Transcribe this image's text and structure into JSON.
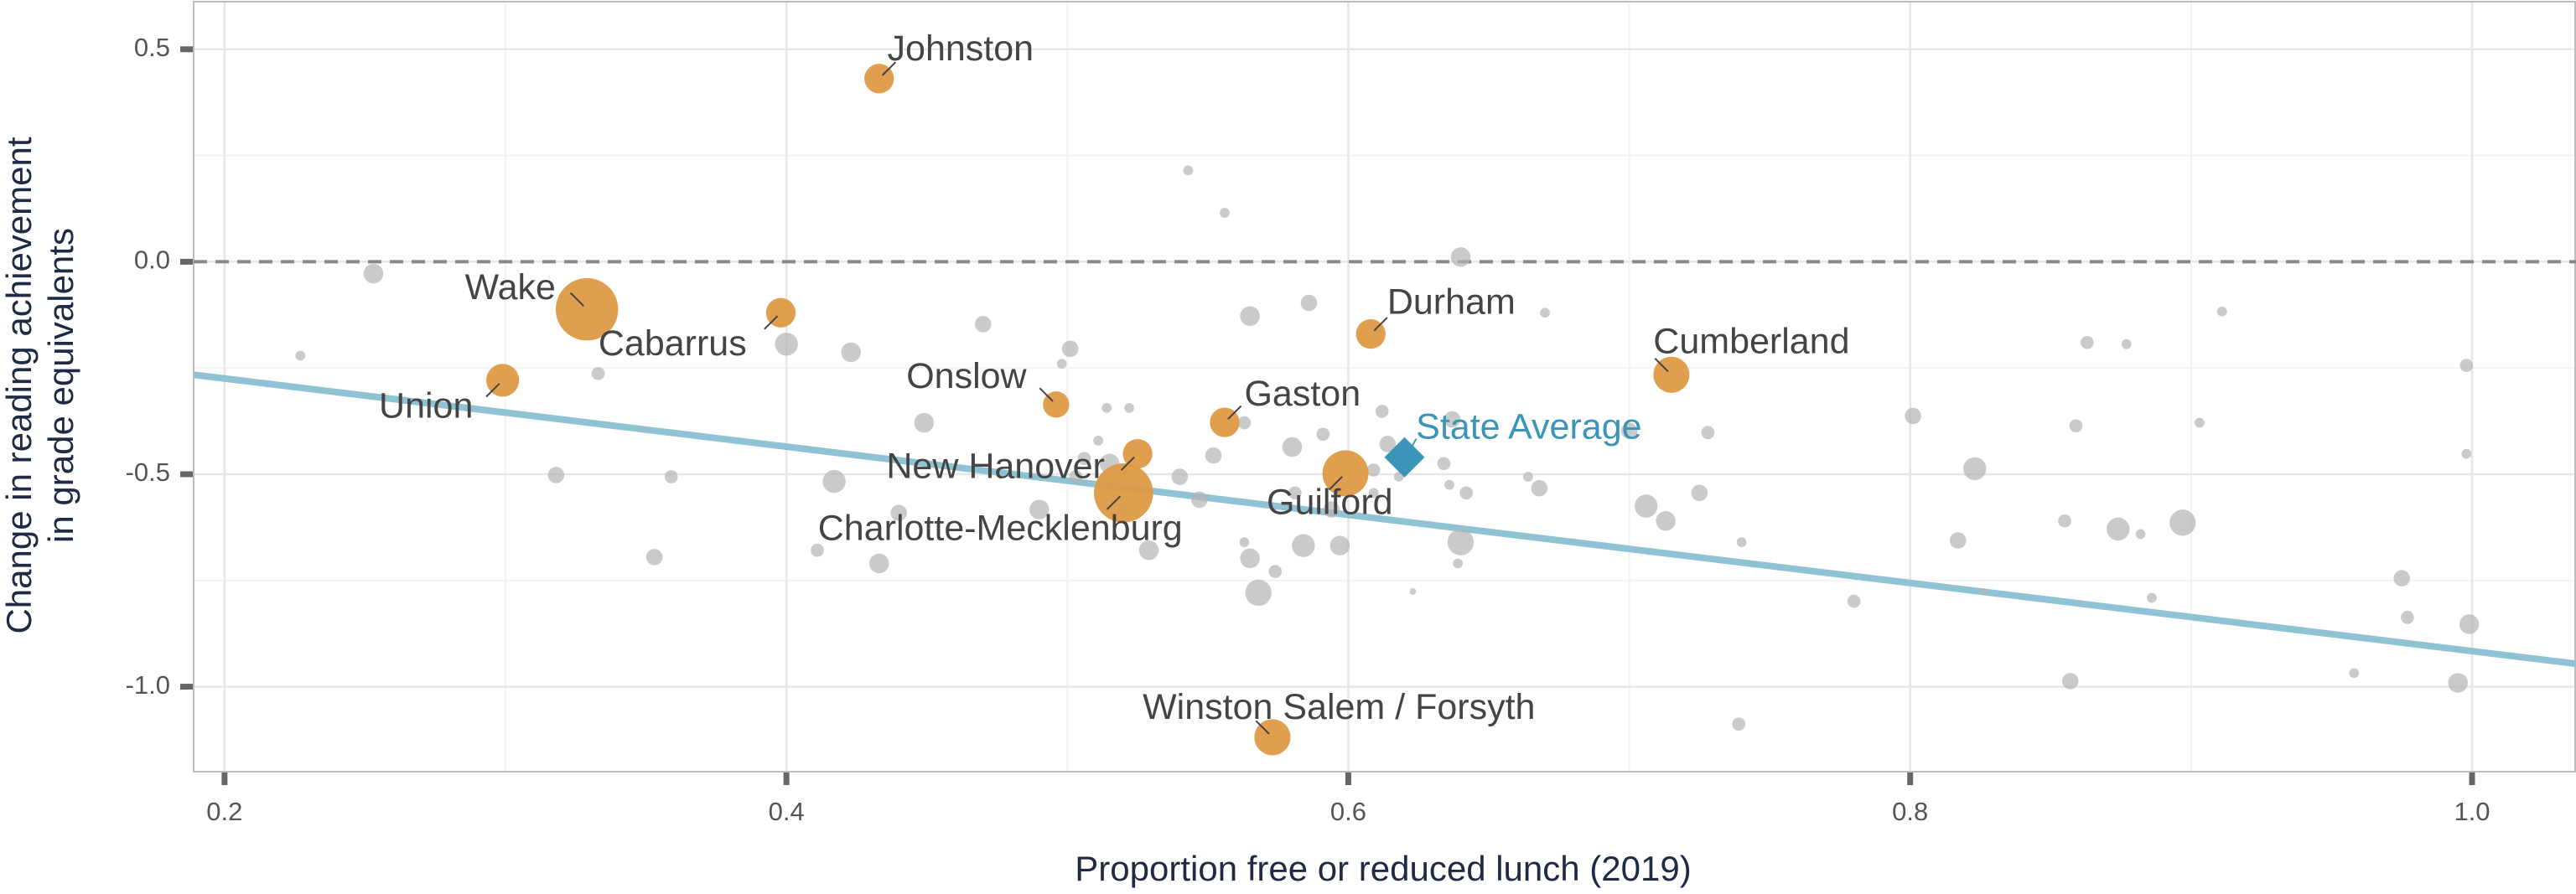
{
  "chart_data": {
    "type": "scatter",
    "x_label": "Proportion free or reduced lunch (2019)",
    "y_label": [
      "Change in reading  achievement",
      "in grade equivalents"
    ],
    "xlim": [
      0.189,
      1.037
    ],
    "ylim": [
      -1.2,
      0.612
    ],
    "xticks": [
      0.2,
      0.4,
      0.6,
      0.8,
      {
        "value": 1,
        "label": "1.0"
      }
    ],
    "yticks": [
      0.5,
      {
        "value": 0,
        "label": "0.0"
      },
      -0.5,
      {
        "value": -1,
        "label": "-1.0"
      }
    ],
    "grid": true,
    "hline": 0,
    "series": [
      {
        "color": "#b3b3b3",
        "x": [
          0.253,
          0.227,
          0.333,
          0.318,
          0.359,
          0.353,
          0.4,
          0.423,
          0.417,
          0.433,
          0.44,
          0.449,
          0.47,
          0.501,
          0.498,
          0.49,
          0.503,
          0.506,
          0.511,
          0.514,
          0.522,
          0.515,
          0.52,
          0.411,
          0.543,
          0.556,
          0.565,
          0.586,
          0.54,
          0.529,
          0.547,
          0.552,
          0.563,
          0.563,
          0.565,
          0.568,
          0.574,
          0.58,
          0.581,
          0.584,
          0.594,
          0.597,
          0.591,
          0.612,
          0.614,
          0.609,
          0.609,
          0.618,
          0.634,
          0.64,
          0.637,
          0.636,
          0.64,
          0.642,
          0.639,
          0.623,
          0.668,
          0.664,
          0.67,
          0.706,
          0.713,
          0.725,
          0.728,
          0.7,
          0.74,
          0.739,
          0.78,
          0.801,
          0.817,
          0.823,
          0.826,
          0.855,
          0.857,
          0.859,
          0.863,
          0.874,
          0.877,
          0.882,
          0.886,
          0.897,
          0.903,
          0.911,
          0.958,
          0.975,
          0.977,
          0.998,
          0.998,
          0.999,
          0.995
        ],
        "values": [
          -0.028,
          -0.221,
          -0.263,
          -0.502,
          -0.506,
          -0.695,
          -0.194,
          -0.213,
          -0.517,
          -0.71,
          -0.591,
          -0.379,
          -0.147,
          -0.205,
          -0.24,
          -0.583,
          -0.506,
          -0.463,
          -0.421,
          -0.344,
          -0.344,
          -0.475,
          -0.583,
          -0.679,
          0.215,
          0.115,
          -0.128,
          -0.097,
          -0.506,
          -0.679,
          -0.56,
          -0.456,
          -0.379,
          -0.66,
          -0.698,
          -0.779,
          -0.729,
          -0.436,
          -0.544,
          -0.668,
          -0.583,
          -0.668,
          -0.406,
          -0.352,
          -0.429,
          -0.49,
          -0.544,
          -0.506,
          -0.475,
          0.011,
          -0.371,
          -0.525,
          -0.66,
          -0.544,
          -0.71,
          -0.776,
          -0.533,
          -0.506,
          -0.12,
          -0.575,
          -0.61,
          -0.544,
          -0.402,
          -0.398,
          -0.66,
          -1.088,
          -0.799,
          -0.363,
          -0.656,
          -0.487,
          -0.776,
          -0.61,
          -0.987,
          -0.386,
          -0.19,
          -0.629,
          -0.194,
          -0.641,
          -0.791,
          -0.614,
          -0.379,
          -0.117,
          -0.968,
          -0.745,
          -0.837,
          -0.244,
          -0.452,
          -0.853,
          -0.991
        ],
        "sizes": [
          6,
          3,
          4,
          5,
          4,
          5,
          7,
          6,
          7,
          6,
          5,
          6,
          5,
          5,
          3,
          6,
          4,
          4,
          3,
          3,
          3,
          6,
          4,
          4,
          3,
          3,
          6,
          5,
          5,
          6,
          5,
          5,
          4,
          3,
          6,
          8,
          4,
          6,
          4,
          7,
          5,
          6,
          4,
          4,
          5,
          4,
          3,
          3,
          4,
          6,
          5,
          3,
          8,
          4,
          3,
          2,
          5,
          3,
          3,
          7,
          6,
          5,
          4,
          5,
          3,
          4,
          4,
          5,
          5,
          7,
          2,
          4,
          5,
          4,
          4,
          7,
          3,
          3,
          3,
          8,
          3,
          3,
          3,
          5,
          4,
          4,
          3,
          6,
          6
        ]
      },
      {
        "color": "#dd9a45",
        "labels": [
          "Johnston",
          "Wake",
          "Cabarrus",
          "Union",
          "Onslow",
          "Gaston",
          "Durham",
          "Cumberland",
          "New Hanover",
          "Charlotte-Mecklenburg",
          "Guilford",
          "Winston Salem / Forsyth"
        ],
        "x": [
          0.433,
          0.329,
          0.398,
          0.299,
          0.496,
          0.556,
          0.608,
          0.715,
          0.525,
          0.52,
          0.599,
          0.573
        ],
        "values": [
          0.431,
          -0.112,
          -0.12,
          -0.279,
          -0.336,
          -0.378,
          -0.17,
          -0.266,
          -0.452,
          -0.544,
          -0.498,
          -1.119
        ],
        "sizes": [
          9,
          19,
          9,
          10,
          8,
          9,
          9,
          11,
          9,
          18,
          14,
          11
        ]
      }
    ],
    "state_average": {
      "label": "State Average",
      "x": 0.62,
      "y": -0.46,
      "color": "#3a95b8"
    },
    "trend_line": {
      "color": "#8fc3d4",
      "x": [
        0.189,
        1.037
      ],
      "values": [
        -0.266,
        -0.946
      ]
    }
  }
}
